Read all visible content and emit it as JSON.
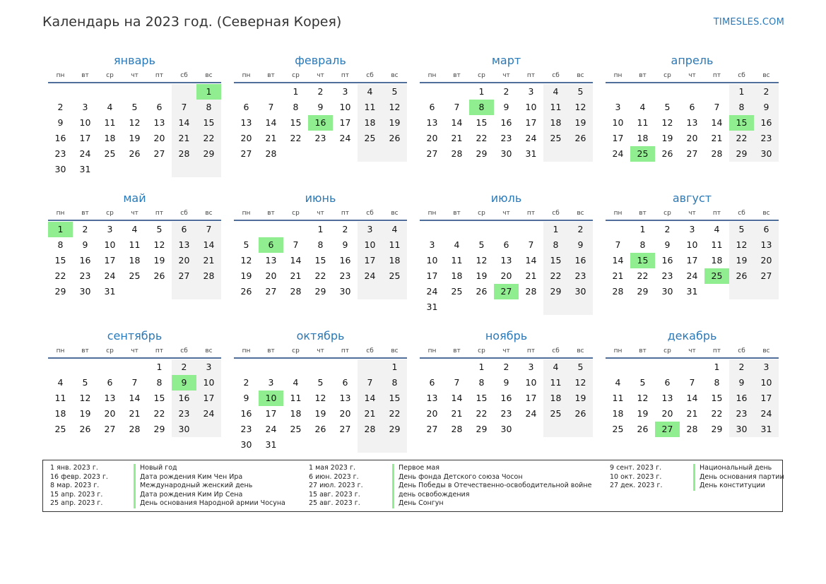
{
  "header": {
    "title": "Календарь на 2023 год. (Северная Корея)",
    "site": "TIMESLES.COM"
  },
  "weekdays": [
    "пн",
    "вт",
    "ср",
    "чт",
    "пт",
    "сб",
    "вс"
  ],
  "colors": {
    "accent": "#2a79b8",
    "holiday": "#90ee90",
    "weekend": "#f2f2f2",
    "rule": "#4f6e99"
  },
  "months": [
    {
      "name": "январь",
      "start": 6,
      "days": 31,
      "holidays": [
        1
      ]
    },
    {
      "name": "февраль",
      "start": 2,
      "days": 28,
      "holidays": [
        16
      ]
    },
    {
      "name": "март",
      "start": 2,
      "days": 31,
      "holidays": [
        8
      ]
    },
    {
      "name": "апрель",
      "start": 5,
      "days": 30,
      "holidays": [
        15,
        25
      ]
    },
    {
      "name": "май",
      "start": 0,
      "days": 31,
      "holidays": [
        1
      ]
    },
    {
      "name": "июнь",
      "start": 3,
      "days": 30,
      "holidays": [
        6
      ]
    },
    {
      "name": "июль",
      "start": 5,
      "days": 31,
      "holidays": [
        27
      ]
    },
    {
      "name": "август",
      "start": 1,
      "days": 31,
      "holidays": [
        15,
        25
      ]
    },
    {
      "name": "сентябрь",
      "start": 4,
      "days": 30,
      "holidays": [
        9
      ]
    },
    {
      "name": "октябрь",
      "start": 6,
      "days": 31,
      "holidays": [
        10
      ]
    },
    {
      "name": "ноябрь",
      "start": 2,
      "days": 30,
      "holidays": []
    },
    {
      "name": "декабрь",
      "start": 4,
      "days": 31,
      "holidays": [
        27
      ]
    }
  ],
  "legend": [
    [
      {
        "date": "1 янв. 2023 г.",
        "name": "Новый год"
      },
      {
        "date": "16 февр. 2023 г.",
        "name": "Дата рождения Ким Чен Ира"
      },
      {
        "date": "8 мар. 2023 г.",
        "name": "Международный женский день"
      },
      {
        "date": "15 апр. 2023 г.",
        "name": "Дата рождения Ким Ир Сена"
      },
      {
        "date": "25 апр. 2023 г.",
        "name": "День основания Народной армии Чосуна"
      }
    ],
    [
      {
        "date": "1 мая 2023 г.",
        "name": "Первое мая"
      },
      {
        "date": "6 июн. 2023 г.",
        "name": "День фонда Детского союза Чосон"
      },
      {
        "date": "27 июл. 2023 г.",
        "name": "День Победы в Отечественно-освободительной войне"
      },
      {
        "date": "15 авг. 2023 г.",
        "name": "день освобождения"
      },
      {
        "date": "25 авг. 2023 г.",
        "name": "День Сонгун"
      }
    ],
    [
      {
        "date": "9 сент. 2023 г.",
        "name": "Национальный день"
      },
      {
        "date": "10 окт. 2023 г.",
        "name": "День основания партии"
      },
      {
        "date": "27 дек. 2023 г.",
        "name": "День конституции"
      }
    ]
  ]
}
